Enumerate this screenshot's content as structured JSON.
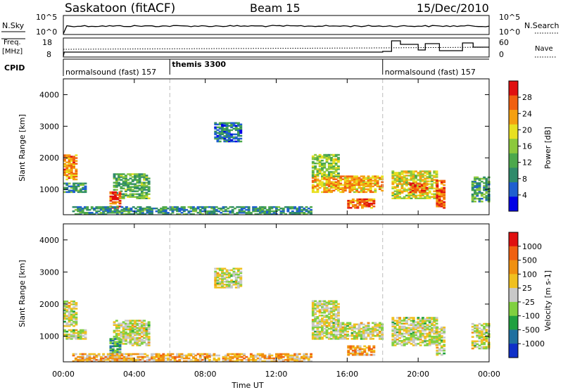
{
  "header": {
    "title": "Saskatoon (fitACF)",
    "beam": "Beam 15",
    "date": "15/Dec/2010"
  },
  "top_strips": {
    "nsky_label": "N.Sky",
    "nsky_ticks": [
      "10^5",
      "10^0"
    ],
    "nsearch_ticks": [
      "10^5",
      "10^0"
    ],
    "nsearch_label": "N.Search",
    "freq_label_1": "Freq.",
    "freq_label_2": "[MHz]",
    "freq_ticks": [
      "18",
      "8"
    ],
    "nave_ticks": [
      "60",
      "0"
    ],
    "nave_label": "Nave",
    "cpid_label": "CPID",
    "cpid_segments": [
      {
        "label": "normalsound (fast) 157",
        "start_hour": 0
      },
      {
        "label": "themis 3300",
        "start_hour": 6
      },
      {
        "label": "normalsound (fast) 157",
        "start_hour": 18
      }
    ]
  },
  "x_axis": {
    "label": "Time UT",
    "ticks": [
      "00:00",
      "04:00",
      "08:00",
      "12:00",
      "16:00",
      "20:00",
      "00:00"
    ]
  },
  "chart_data": [
    {
      "type": "heatmap",
      "name": "power",
      "ylabel": "Slant Range [km]",
      "yticks": [
        "4000",
        "3000",
        "2000",
        "1000"
      ],
      "ylim": [
        200,
        4500
      ],
      "xlim": [
        0,
        24
      ],
      "colorbar_label": "Power [dB]",
      "colorbar_ticks": [
        "28",
        "24",
        "20",
        "16",
        "12",
        "8",
        "4"
      ],
      "colorscale": [
        "#0000e6",
        "#1f5fd0",
        "#2f8a6a",
        "#4ca84c",
        "#8cc83c",
        "#e8e020",
        "#f5a010",
        "#f06010",
        "#e01010"
      ],
      "regions": [
        {
          "t": [
            0.0,
            0.7
          ],
          "r": [
            1300,
            2100
          ],
          "level": 0.75
        },
        {
          "t": [
            0.0,
            1.2
          ],
          "r": [
            900,
            1200
          ],
          "level": 0.3
        },
        {
          "t": [
            2.8,
            4.8
          ],
          "r": [
            700,
            1500
          ],
          "level": 0.4
        },
        {
          "t": [
            2.6,
            3.2
          ],
          "r": [
            400,
            900
          ],
          "level": 0.85
        },
        {
          "t": [
            0.5,
            14.0
          ],
          "r": [
            200,
            450
          ],
          "level": 0.3
        },
        {
          "t": [
            14.0,
            18.0
          ],
          "r": [
            900,
            1400
          ],
          "level": 0.7
        },
        {
          "t": [
            14.0,
            15.5
          ],
          "r": [
            1400,
            2100
          ],
          "level": 0.5
        },
        {
          "t": [
            16.0,
            17.5
          ],
          "r": [
            400,
            700
          ],
          "level": 0.8
        },
        {
          "t": [
            18.5,
            21.0
          ],
          "r": [
            700,
            1600
          ],
          "level": 0.6
        },
        {
          "t": [
            19.5,
            20.5
          ],
          "r": [
            900,
            1200
          ],
          "level": 0.85
        },
        {
          "t": [
            21.0,
            21.5
          ],
          "r": [
            400,
            1300
          ],
          "level": 0.8
        },
        {
          "t": [
            23.0,
            24.0
          ],
          "r": [
            600,
            1400
          ],
          "level": 0.35
        },
        {
          "t": [
            8.5,
            10.0
          ],
          "r": [
            2500,
            3100
          ],
          "level": 0.25
        }
      ]
    },
    {
      "type": "heatmap",
      "name": "velocity",
      "ylabel": "Slant Range [km]",
      "yticks": [
        "4000",
        "3000",
        "2000",
        "1000"
      ],
      "ylim": [
        200,
        4500
      ],
      "xlim": [
        0,
        24
      ],
      "colorbar_label": "Velocity [m s-1]",
      "colorbar_ticks": [
        "1000",
        "500",
        "100",
        "25",
        "-25",
        "-100",
        "-500",
        "-1000"
      ],
      "colorscale": [
        "#1030c8",
        "#2070a0",
        "#20a040",
        "#80d040",
        "#c8c8c8",
        "#f0c020",
        "#f09010",
        "#f06010",
        "#e01010"
      ],
      "regions": [
        {
          "t": [
            0.0,
            0.7
          ],
          "r": [
            1300,
            2100
          ],
          "level": 0.5
        },
        {
          "t": [
            0.0,
            1.2
          ],
          "r": [
            900,
            1200
          ],
          "level": 0.5
        },
        {
          "t": [
            2.8,
            4.8
          ],
          "r": [
            700,
            1500
          ],
          "level": 0.5
        },
        {
          "t": [
            2.6,
            3.2
          ],
          "r": [
            400,
            900
          ],
          "level": 0.3
        },
        {
          "t": [
            0.5,
            14.0
          ],
          "r": [
            200,
            450
          ],
          "level": 0.65
        },
        {
          "t": [
            14.0,
            18.0
          ],
          "r": [
            900,
            1400
          ],
          "level": 0.5
        },
        {
          "t": [
            14.0,
            15.5
          ],
          "r": [
            1400,
            2100
          ],
          "level": 0.5
        },
        {
          "t": [
            16.0,
            17.5
          ],
          "r": [
            400,
            700
          ],
          "level": 0.7
        },
        {
          "t": [
            18.5,
            21.0
          ],
          "r": [
            700,
            1600
          ],
          "level": 0.5
        },
        {
          "t": [
            21.0,
            21.5
          ],
          "r": [
            400,
            1300
          ],
          "level": 0.5
        },
        {
          "t": [
            23.0,
            24.0
          ],
          "r": [
            600,
            1400
          ],
          "level": 0.5
        },
        {
          "t": [
            8.5,
            10.0
          ],
          "r": [
            2500,
            3100
          ],
          "level": 0.5
        }
      ]
    }
  ]
}
